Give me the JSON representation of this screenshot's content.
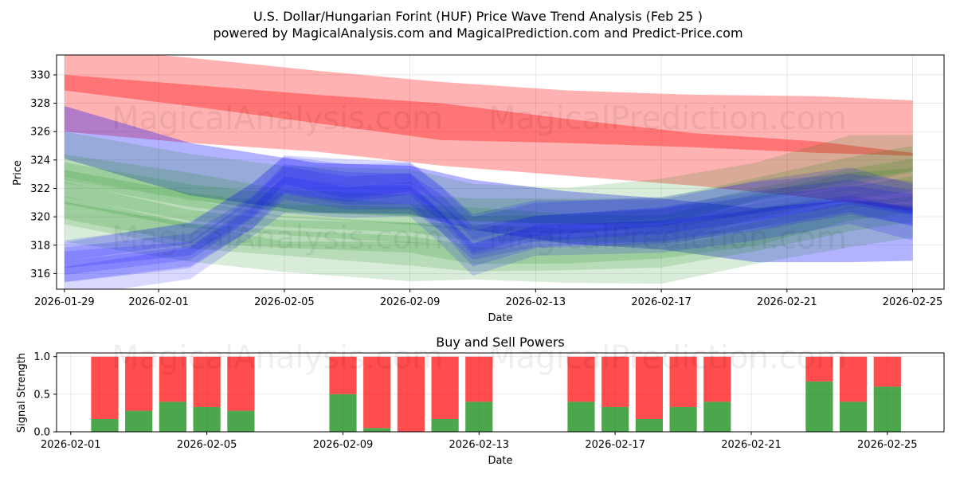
{
  "colors": {
    "sell": "#ff0000",
    "buy": "#008000",
    "predict": "#0000ff"
  },
  "watermark": {
    "main": "MagicalAnalysis.com",
    "secondary": "MagicalPrediction.com"
  },
  "chart_data": [
    {
      "type": "area",
      "title": "U.S. Dollar/Hungarian Forint (HUF) Price Wave Trend Analysis (Feb 25 )",
      "subtitle": "powered by MagicalAnalysis.com and MagicalPrediction.com and Predict-Price.com",
      "xlabel": "Date",
      "ylabel": "Price",
      "ylim": [
        314.9,
        331.4
      ],
      "x_range": [
        "2026-01-28T18:00",
        "2026-02-26T00:00"
      ],
      "x_ticks": [
        "2026-01-29",
        "2026-02-01",
        "2026-02-05",
        "2026-02-09",
        "2026-02-13",
        "2026-02-17",
        "2026-02-21",
        "2026-02-25"
      ],
      "y_ticks": [
        316,
        318,
        320,
        322,
        324,
        326,
        328,
        330
      ],
      "grid": true,
      "series": [
        {
          "name": "red-outer-band",
          "color": "#ff0000",
          "opacity": 0.3,
          "x": [
            "2026-01-29",
            "2026-02-02",
            "2026-02-06",
            "2026-02-10",
            "2026-02-14",
            "2026-02-18",
            "2026-02-22",
            "2026-02-25"
          ],
          "upper": [
            332.0,
            331.2,
            330.3,
            329.5,
            328.9,
            328.6,
            328.5,
            328.2
          ],
          "lower": [
            326.0,
            325.2,
            324.6,
            323.6,
            322.9,
            322.2,
            321.3,
            320.4
          ]
        },
        {
          "name": "red-core-band",
          "color": "#ff0000",
          "opacity": 0.35,
          "x": [
            "2026-01-29",
            "2026-02-02",
            "2026-02-06",
            "2026-02-10",
            "2026-02-14",
            "2026-02-18",
            "2026-02-22",
            "2026-02-25"
          ],
          "upper": [
            330.0,
            329.3,
            328.6,
            328.0,
            326.9,
            325.9,
            325.3,
            324.5
          ],
          "lower": [
            328.9,
            327.8,
            326.6,
            325.4,
            325.2,
            324.9,
            324.5,
            324.3
          ]
        },
        {
          "name": "blue-prediction-band",
          "color": "#0000ff",
          "opacity": 0.3,
          "x": [
            "2026-01-29",
            "2026-02-02",
            "2026-02-06",
            "2026-02-09",
            "2026-02-11",
            "2026-02-14",
            "2026-02-17",
            "2026-02-20",
            "2026-02-23",
            "2026-02-25"
          ],
          "upper": [
            327.8,
            325.2,
            323.8,
            323.6,
            322.6,
            321.8,
            321.3,
            320.6,
            321.2,
            320.7
          ],
          "lower": [
            324.1,
            321.5,
            320.3,
            320.2,
            319.1,
            318.1,
            317.7,
            316.8,
            316.8,
            316.9
          ]
        },
        {
          "name": "green-waves",
          "color": "#008000",
          "opacity": 0.15,
          "x": [
            "2026-01-29",
            "2026-02-02",
            "2026-02-05",
            "2026-02-09",
            "2026-02-11",
            "2026-02-14",
            "2026-02-17",
            "2026-02-20",
            "2026-02-23",
            "2026-02-25"
          ],
          "values": [
            322.0,
            320.4,
            319.6,
            319.2,
            318.8,
            318.6,
            318.9,
            320.2,
            321.6,
            322.3
          ]
        },
        {
          "name": "blue-waves",
          "color": "#0000ff",
          "opacity": 0.15,
          "x": [
            "2026-01-29",
            "2026-02-02",
            "2026-02-04",
            "2026-02-05",
            "2026-02-07",
            "2026-02-09",
            "2026-02-10",
            "2026-02-11",
            "2026-02-13",
            "2026-02-17",
            "2026-02-20",
            "2026-02-23",
            "2026-02-25"
          ],
          "values": [
            316.5,
            317.5,
            320.5,
            322.5,
            321.8,
            322.0,
            320.2,
            318.0,
            319.0,
            319.5,
            320.5,
            321.3,
            320.5
          ]
        }
      ]
    },
    {
      "type": "bar",
      "title": "Buy and Sell Powers",
      "xlabel": "Date",
      "ylabel": "Signal Strength",
      "ylim": [
        0,
        1.05
      ],
      "x_range": [
        "2026-01-31T14:00",
        "2026-02-26T16:00"
      ],
      "x_ticks": [
        "2026-02-01",
        "2026-02-05",
        "2026-02-09",
        "2026-02-13",
        "2026-02-17",
        "2026-02-21",
        "2026-02-25"
      ],
      "y_ticks": [
        "0.0",
        "0.5",
        "1.0"
      ],
      "grid": true,
      "categories": [
        "2026-02-02",
        "2026-02-03",
        "2026-02-04",
        "2026-02-05",
        "2026-02-06",
        "2026-02-09",
        "2026-02-10",
        "2026-02-11",
        "2026-02-12",
        "2026-02-13",
        "2026-02-16",
        "2026-02-17",
        "2026-02-18",
        "2026-02-19",
        "2026-02-20",
        "2026-02-23",
        "2026-02-24",
        "2026-02-25"
      ],
      "series": [
        {
          "name": "Buy",
          "color": "#008000",
          "values": [
            0.17,
            0.28,
            0.4,
            0.33,
            0.28,
            0.5,
            0.05,
            0.0,
            0.17,
            0.4,
            0.4,
            0.33,
            0.17,
            0.33,
            0.4,
            0.67,
            0.4,
            0.6
          ]
        },
        {
          "name": "Sell",
          "color": "#ff0000",
          "values": [
            0.83,
            0.72,
            0.6,
            0.67,
            0.72,
            0.5,
            0.95,
            1.0,
            0.83,
            0.6,
            0.6,
            0.67,
            0.83,
            0.67,
            0.6,
            0.33,
            0.6,
            0.4
          ]
        }
      ]
    }
  ]
}
